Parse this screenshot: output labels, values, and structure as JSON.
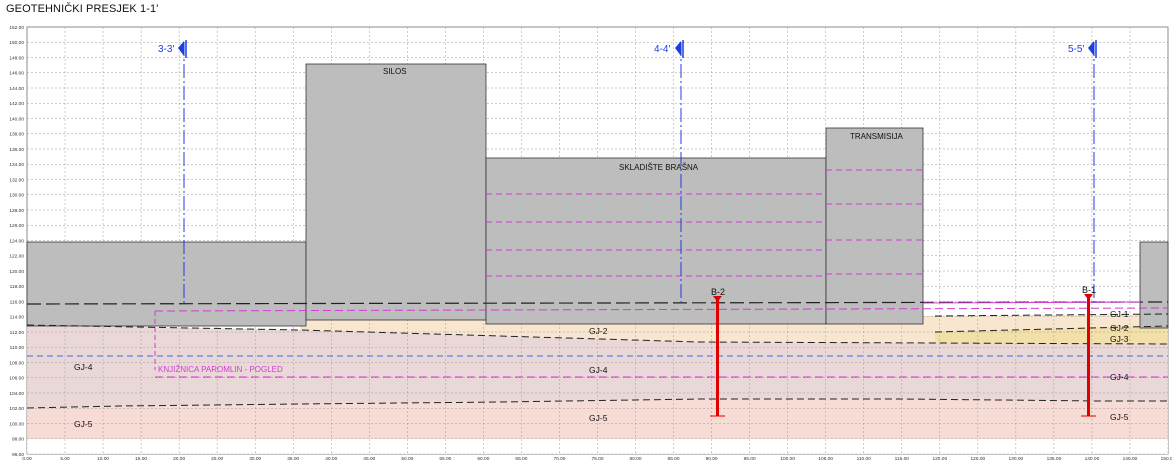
{
  "title": "GEOTEHNIČKI PRESJEK 1-1'",
  "axes": {
    "y_ticks": [
      "96.00",
      "98.00",
      "100.00",
      "102.00",
      "104.00",
      "106.00",
      "108.00",
      "110.00",
      "112.00",
      "114.00",
      "116.00",
      "118.00",
      "120.00",
      "122.00",
      "124.00",
      "126.00",
      "128.00",
      "130.00",
      "132.00",
      "134.00",
      "136.00",
      "138.00",
      "140.00",
      "142.00",
      "144.00",
      "146.00",
      "148.00",
      "150.00",
      "152.00"
    ],
    "x_ticks": [
      "0.00",
      "5.00",
      "10.00",
      "15.00",
      "20.00",
      "25.00",
      "30.00",
      "35.00",
      "40.00",
      "45.00",
      "50.00",
      "55.00",
      "60.00",
      "65.00",
      "70.00",
      "75.00",
      "80.00",
      "85.00",
      "90.00",
      "95.00",
      "100.00",
      "105.00",
      "110.00",
      "115.00",
      "120.00",
      "125.00",
      "130.00",
      "135.00",
      "140.00",
      "145.00",
      "150.00"
    ],
    "y_range": [
      96,
      152
    ],
    "x_range": [
      0,
      150
    ]
  },
  "buildings": {
    "silos": "SILOS",
    "skladiste": "SKLADIŠTE BRAŠNA",
    "transmisija": "TRANSMISIJA"
  },
  "annotation": "KNJIŽNICA PAROMLIN - POGLED",
  "cross_sections": [
    "3-3'",
    "4-4'",
    "5-5'"
  ],
  "boreholes": [
    "B-2",
    "B-1"
  ],
  "layers": {
    "gj1": "GJ-1",
    "gj2": "GJ-2",
    "gj3": "GJ-3",
    "gj4": "GJ-4",
    "gj5": "GJ-5"
  },
  "colors": {
    "building": "#bdbdbd",
    "gj2_fill": "#f8e6cf",
    "gj4_fill": "#ead8d8",
    "gj5_fill": "#f7dcd6",
    "section_line": "#1f3ee0",
    "magenta": "#d23cd2",
    "borehole": "#e00000"
  }
}
